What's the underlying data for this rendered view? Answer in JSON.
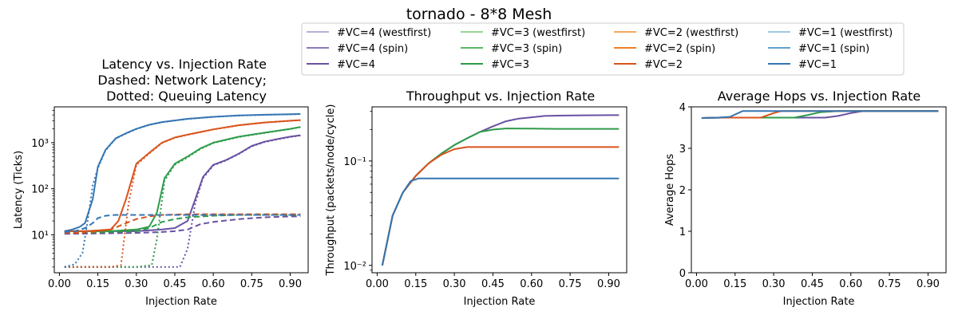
{
  "suptitle": "tornado - 8*8 Mesh",
  "colors": {
    "vc4_wf": "#b9afd7",
    "vc4_spin": "#8e7ab8",
    "vc4": "#6a51a3",
    "vc3_wf": "#98d594",
    "vc3_spin": "#5ab866",
    "vc3": "#2e9b4a",
    "vc2_wf": "#f6a75e",
    "vc2_spin": "#f07f28",
    "vc2": "#d9531b",
    "vc1_wf": "#9ecae1",
    "vc1_spin": "#60a1cd",
    "vc1": "#3575b3"
  },
  "legend": [
    {
      "label": "#VC=4 (westfirst)",
      "color": "vc4_wf"
    },
    {
      "label": "#VC=4 (spin)",
      "color": "vc4_spin"
    },
    {
      "label": "#VC=4",
      "color": "vc4"
    },
    {
      "label": "#VC=3 (westfirst)",
      "color": "vc3_wf"
    },
    {
      "label": "#VC=3 (spin)",
      "color": "vc3_spin"
    },
    {
      "label": "#VC=3",
      "color": "vc3"
    },
    {
      "label": "#VC=2 (westfirst)",
      "color": "vc2_wf"
    },
    {
      "label": "#VC=2 (spin)",
      "color": "vc2_spin"
    },
    {
      "label": "#VC=2",
      "color": "vc2"
    },
    {
      "label": "#VC=1 (westfirst)",
      "color": "vc1_wf"
    },
    {
      "label": "#VC=1 (spin)",
      "color": "vc1_spin"
    },
    {
      "label": "#VC=1",
      "color": "vc1"
    }
  ],
  "chart_data": [
    {
      "type": "line",
      "title_lines": [
        "Latency vs. Injection Rate",
        "Dashed: Network Latency;",
        "Dotted: Queuing Latency"
      ],
      "xlabel": "Injection Rate",
      "ylabel": "Latency (Ticks)",
      "yscale": "log",
      "xlim": [
        -0.02,
        0.97
      ],
      "ylim": [
        1.5,
        6000
      ],
      "xticks": [
        0.0,
        0.15,
        0.3,
        0.45,
        0.6,
        0.75,
        0.9
      ],
      "xtick_labels": [
        "0.00",
        "0.15",
        "0.30",
        "0.45",
        "0.60",
        "0.75",
        "0.90"
      ],
      "yticks": [
        10,
        100,
        1000
      ],
      "ytick_labels": [
        "10¹",
        "10²",
        "10³"
      ],
      "series": [
        {
          "color": "vc4",
          "style": "solid",
          "x": [
            0.02,
            0.1,
            0.2,
            0.3,
            0.4,
            0.45,
            0.5,
            0.53,
            0.56,
            0.6,
            0.65,
            0.7,
            0.75,
            0.8,
            0.85,
            0.9,
            0.94
          ],
          "y": [
            12,
            12,
            12,
            12,
            13,
            14,
            20,
            60,
            180,
            330,
            420,
            580,
            850,
            1050,
            1200,
            1350,
            1450
          ]
        },
        {
          "color": "vc4",
          "style": "dashed",
          "x": [
            0.02,
            0.1,
            0.2,
            0.3,
            0.4,
            0.45,
            0.5,
            0.55,
            0.6,
            0.7,
            0.8,
            0.9,
            0.94
          ],
          "y": [
            10.5,
            10.6,
            10.8,
            11,
            11.5,
            12,
            13,
            17,
            19,
            22,
            24,
            25,
            25
          ]
        },
        {
          "color": "vc4",
          "style": "dotted",
          "x": [
            0.02,
            0.1,
            0.2,
            0.3,
            0.4,
            0.47,
            0.5,
            0.53,
            0.56,
            0.6,
            0.65,
            0.7,
            0.75,
            0.8,
            0.85,
            0.9,
            0.94
          ],
          "y": [
            2,
            2,
            2,
            2,
            2,
            2,
            5,
            50,
            170,
            320,
            410,
            570,
            830,
            1030,
            1180,
            1330,
            1430
          ]
        },
        {
          "color": "vc3",
          "style": "solid",
          "x": [
            0.02,
            0.1,
            0.2,
            0.3,
            0.35,
            0.38,
            0.41,
            0.45,
            0.5,
            0.55,
            0.6,
            0.7,
            0.8,
            0.9,
            0.94
          ],
          "y": [
            12,
            12,
            12,
            13,
            15,
            30,
            170,
            350,
            500,
            750,
            1000,
            1350,
            1650,
            2000,
            2200
          ]
        },
        {
          "color": "vc3",
          "style": "dashed",
          "x": [
            0.02,
            0.1,
            0.2,
            0.3,
            0.35,
            0.4,
            0.45,
            0.5,
            0.6,
            0.7,
            0.8,
            0.94
          ],
          "y": [
            11,
            11,
            11.5,
            12,
            14,
            19,
            22,
            24,
            26,
            27,
            27,
            27
          ]
        },
        {
          "color": "vc3",
          "style": "dotted",
          "x": [
            0.02,
            0.1,
            0.2,
            0.3,
            0.36,
            0.38,
            0.41,
            0.45,
            0.5,
            0.55,
            0.6,
            0.7,
            0.8,
            0.9,
            0.94
          ],
          "y": [
            2,
            2,
            2,
            2,
            2.2,
            8,
            150,
            330,
            480,
            730,
            980,
            1330,
            1630,
            1980,
            2180
          ]
        },
        {
          "color": "vc2",
          "style": "solid",
          "x": [
            0.02,
            0.1,
            0.2,
            0.23,
            0.26,
            0.3,
            0.35,
            0.4,
            0.45,
            0.5,
            0.6,
            0.7,
            0.8,
            0.9,
            0.94
          ],
          "y": [
            12,
            12,
            13,
            20,
            60,
            350,
            600,
            1000,
            1300,
            1500,
            1950,
            2400,
            2750,
            3000,
            3100
          ]
        },
        {
          "color": "vc2",
          "style": "dashed",
          "x": [
            0.02,
            0.1,
            0.15,
            0.2,
            0.25,
            0.3,
            0.35,
            0.4,
            0.5,
            0.6,
            0.7,
            0.8,
            0.94
          ],
          "y": [
            11,
            11,
            12,
            13,
            17,
            22,
            25,
            27,
            28,
            28,
            28,
            28,
            28
          ]
        },
        {
          "color": "vc2",
          "style": "dotted",
          "x": [
            0.02,
            0.1,
            0.2,
            0.24,
            0.27,
            0.3,
            0.35,
            0.4,
            0.45,
            0.5,
            0.6,
            0.7,
            0.8,
            0.9,
            0.94
          ],
          "y": [
            2,
            2,
            2,
            2.2,
            50,
            330,
            580,
            980,
            1280,
            1480,
            1930,
            2380,
            2730,
            2980,
            3080
          ]
        },
        {
          "color": "vc1",
          "style": "solid",
          "x": [
            0.02,
            0.05,
            0.08,
            0.1,
            0.13,
            0.15,
            0.18,
            0.22,
            0.26,
            0.3,
            0.35,
            0.4,
            0.5,
            0.6,
            0.7,
            0.8,
            0.9,
            0.94
          ],
          "y": [
            12,
            13,
            15,
            18,
            60,
            300,
            700,
            1250,
            1600,
            2000,
            2450,
            2800,
            3300,
            3650,
            3900,
            4050,
            4150,
            4200
          ]
        },
        {
          "color": "vc1",
          "style": "dashed",
          "x": [
            0.02,
            0.06,
            0.1,
            0.13,
            0.15,
            0.18,
            0.22,
            0.3,
            0.4,
            0.5,
            0.6,
            0.7,
            0.8,
            0.94
          ],
          "y": [
            11.5,
            12,
            14,
            18,
            23,
            26,
            27,
            27,
            27,
            27,
            27,
            27,
            27,
            27
          ]
        },
        {
          "color": "vc1",
          "style": "dotted",
          "x": [
            0.02,
            0.06,
            0.09,
            0.11,
            0.13,
            0.15,
            0.18,
            0.22,
            0.26,
            0.3,
            0.35,
            0.4,
            0.5,
            0.6,
            0.7,
            0.8,
            0.9,
            0.94
          ],
          "y": [
            2,
            2.3,
            4,
            20,
            120,
            280,
            680,
            1230,
            1580,
            1980,
            2430,
            2780,
            3280,
            3630,
            3880,
            4030,
            4130,
            4180
          ]
        }
      ]
    },
    {
      "type": "line",
      "title_lines": [
        "Throughput vs. Injection Rate"
      ],
      "xlabel": "Injection Rate",
      "ylabel": "Throughput (packets/node/cycle)",
      "yscale": "log",
      "xlim": [
        -0.02,
        0.97
      ],
      "ylim": [
        0.0085,
        0.33
      ],
      "xticks": [
        0.0,
        0.15,
        0.3,
        0.45,
        0.6,
        0.75,
        0.9
      ],
      "xtick_labels": [
        "0.00",
        "0.15",
        "0.30",
        "0.45",
        "0.60",
        "0.75",
        "0.90"
      ],
      "yticks": [
        0.01,
        0.1
      ],
      "ytick_labels": [
        "10⁻²",
        "10⁻¹"
      ],
      "series": [
        {
          "color": "vc4",
          "style": "solid",
          "x": [
            0.02,
            0.06,
            0.1,
            0.15,
            0.2,
            0.25,
            0.3,
            0.35,
            0.4,
            0.45,
            0.5,
            0.55,
            0.6,
            0.65,
            0.7,
            0.8,
            0.9,
            0.94
          ],
          "y": [
            0.01,
            0.03,
            0.05,
            0.072,
            0.095,
            0.118,
            0.142,
            0.165,
            0.19,
            0.215,
            0.24,
            0.255,
            0.262,
            0.27,
            0.272,
            0.274,
            0.275,
            0.275
          ]
        },
        {
          "color": "vc3",
          "style": "solid",
          "x": [
            0.02,
            0.06,
            0.1,
            0.15,
            0.2,
            0.25,
            0.3,
            0.35,
            0.4,
            0.45,
            0.5,
            0.6,
            0.7,
            0.8,
            0.9,
            0.94
          ],
          "y": [
            0.01,
            0.03,
            0.05,
            0.072,
            0.095,
            0.118,
            0.142,
            0.165,
            0.19,
            0.2,
            0.205,
            0.204,
            0.203,
            0.203,
            0.203,
            0.203
          ]
        },
        {
          "color": "vc2",
          "style": "solid",
          "x": [
            0.02,
            0.06,
            0.1,
            0.15,
            0.2,
            0.25,
            0.3,
            0.35,
            0.4,
            0.5,
            0.6,
            0.7,
            0.8,
            0.9,
            0.94
          ],
          "y": [
            0.01,
            0.03,
            0.05,
            0.072,
            0.095,
            0.115,
            0.13,
            0.136,
            0.136,
            0.136,
            0.136,
            0.136,
            0.136,
            0.136,
            0.136
          ]
        },
        {
          "color": "vc1",
          "style": "solid",
          "x": [
            0.02,
            0.06,
            0.1,
            0.13,
            0.16,
            0.2,
            0.3,
            0.4,
            0.5,
            0.6,
            0.7,
            0.8,
            0.9,
            0.94
          ],
          "y": [
            0.01,
            0.03,
            0.05,
            0.064,
            0.068,
            0.068,
            0.068,
            0.068,
            0.068,
            0.068,
            0.068,
            0.068,
            0.068,
            0.068
          ]
        }
      ]
    },
    {
      "type": "line",
      "title_lines": [
        "Average Hops vs. Injection Rate"
      ],
      "xlabel": "Injection Rate",
      "ylabel": "Average Hops",
      "yscale": "linear",
      "xlim": [
        -0.02,
        0.97
      ],
      "ylim": [
        0,
        4
      ],
      "xticks": [
        0.0,
        0.15,
        0.3,
        0.45,
        0.6,
        0.75,
        0.9
      ],
      "xtick_labels": [
        "0.00",
        "0.15",
        "0.30",
        "0.45",
        "0.60",
        "0.75",
        "0.90"
      ],
      "yticks": [
        0,
        1,
        2,
        3,
        4
      ],
      "ytick_labels": [
        "0",
        "1",
        "2",
        "3",
        "4"
      ],
      "series": [
        {
          "color": "vc4",
          "style": "solid",
          "x": [
            0.02,
            0.1,
            0.2,
            0.3,
            0.4,
            0.5,
            0.55,
            0.6,
            0.65,
            0.7,
            0.8,
            0.9,
            0.94
          ],
          "y": [
            3.73,
            3.74,
            3.74,
            3.74,
            3.74,
            3.74,
            3.78,
            3.85,
            3.9,
            3.9,
            3.9,
            3.9,
            3.9
          ]
        },
        {
          "color": "vc3",
          "style": "solid",
          "x": [
            0.02,
            0.1,
            0.2,
            0.3,
            0.38,
            0.43,
            0.48,
            0.55,
            0.6,
            0.7,
            0.8,
            0.94
          ],
          "y": [
            3.73,
            3.74,
            3.74,
            3.74,
            3.74,
            3.8,
            3.87,
            3.9,
            3.9,
            3.9,
            3.9,
            3.9
          ]
        },
        {
          "color": "vc2",
          "style": "solid",
          "x": [
            0.02,
            0.1,
            0.2,
            0.25,
            0.3,
            0.33,
            0.4,
            0.5,
            0.6,
            0.7,
            0.8,
            0.94
          ],
          "y": [
            3.73,
            3.74,
            3.74,
            3.74,
            3.85,
            3.9,
            3.9,
            3.9,
            3.9,
            3.9,
            3.9,
            3.9
          ]
        },
        {
          "color": "vc1",
          "style": "solid",
          "x": [
            0.02,
            0.08,
            0.13,
            0.18,
            0.22,
            0.3,
            0.4,
            0.5,
            0.6,
            0.7,
            0.8,
            0.94
          ],
          "y": [
            3.73,
            3.74,
            3.76,
            3.9,
            3.9,
            3.9,
            3.9,
            3.9,
            3.9,
            3.9,
            3.9,
            3.9
          ]
        }
      ]
    }
  ]
}
